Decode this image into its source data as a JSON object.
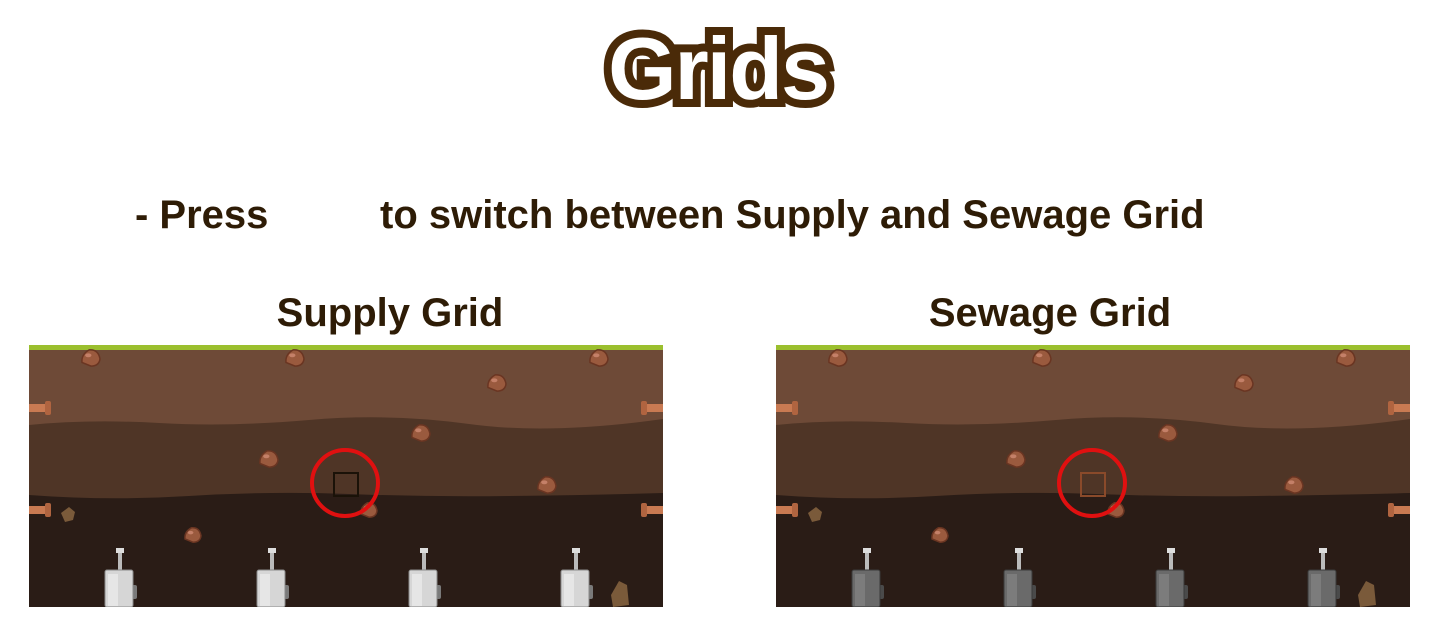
{
  "page": {
    "title": "Grids",
    "instruction_before": "- Press",
    "instruction_after": "to switch between Supply and Sewage Grid"
  },
  "panels": [
    {
      "id": "supply",
      "label": "Supply Grid",
      "highlight_color": "#1a1208",
      "appliance_tone": "light"
    },
    {
      "id": "sewage",
      "label": "Sewage Grid",
      "highlight_color": "#8a4a2a",
      "appliance_tone": "dark"
    }
  ],
  "colors": {
    "title_fill": "#ffffff",
    "title_outline": "#4a2a08",
    "text": "#2e1c06",
    "grass": "#9bbf2e",
    "soil_top": "#6e4a37",
    "soil_middle": "#4f3526",
    "soil_bottom": "#2a1c16",
    "marker_circle": "#e01010",
    "pipe": "#c97a52"
  },
  "icons": {
    "key_slot": "blank-key-icon",
    "rock": "rock-icon",
    "pipe": "pipe-icon",
    "appliance": "valve-appliance-icon",
    "marker": "red-circle-highlight-icon"
  }
}
